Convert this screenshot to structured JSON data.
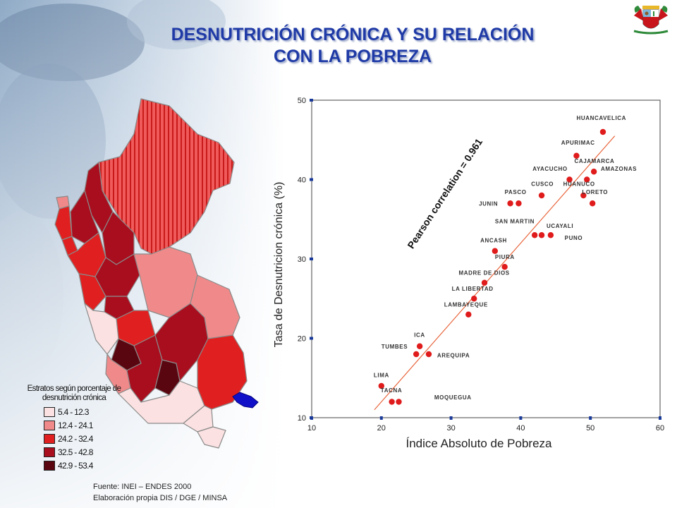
{
  "title": {
    "line1": "DESNUTRICIÓN CRÓNICA Y SU RELACIÓN",
    "line2": "CON LA POBREZA"
  },
  "colors": {
    "title": "#1f3aa6",
    "point": "#e01b1b",
    "fit_line": "#e8643a",
    "axis_tick": "#1a3a9a",
    "map_outline": "#8a8a8a",
    "highlight_region": "#1010c8"
  },
  "emblem": {
    "icon": "peru-coat-of-arms-icon"
  },
  "map": {
    "icon": "peru-regions-choropleth-map",
    "legend": {
      "title_line1": "Estratos según porcentaje de",
      "title_line2": "desnutrición crónica",
      "items": [
        {
          "label": "5.4 - 12.3",
          "color": "#fbe1e1"
        },
        {
          "label": "12.4 - 24.1",
          "color": "#f08a8a"
        },
        {
          "label": "24.2 - 32.4",
          "color": "#e02020"
        },
        {
          "label": "32.5 - 42.8",
          "color": "#a80e1e"
        },
        {
          "label": "42.9 - 53.4",
          "color": "#5a0610"
        }
      ]
    }
  },
  "source": {
    "line1": "Fuente: INEI – ENDES 2000",
    "line2": "Elaboración propia DIS / DGE / MINSA"
  },
  "chart_data": {
    "type": "scatter",
    "xlabel": "Índice Absoluto de Pobreza",
    "ylabel": "Tasa de Desnutricion crónica (%)",
    "xlim": [
      10,
      60
    ],
    "ylim": [
      10,
      50
    ],
    "xticks": [
      "10",
      "20",
      "30",
      "40",
      "50",
      "60"
    ],
    "yticks": [
      "10",
      "20",
      "30",
      "40",
      "50"
    ],
    "annotation": "Pearson correlation = 0.961",
    "fit_line": {
      "from": [
        19,
        11
      ],
      "to": [
        53.5,
        45.5
      ]
    },
    "points": [
      {
        "x": 51.8,
        "y": 46.0
      },
      {
        "x": 48.0,
        "y": 43.0
      },
      {
        "x": 47.0,
        "y": 40.0
      },
      {
        "x": 49.5,
        "y": 40.0
      },
      {
        "x": 50.5,
        "y": 41.0
      },
      {
        "x": 43.0,
        "y": 38.0
      },
      {
        "x": 49.0,
        "y": 38.0
      },
      {
        "x": 38.5,
        "y": 37.0
      },
      {
        "x": 39.7,
        "y": 37.0
      },
      {
        "x": 50.3,
        "y": 37.0
      },
      {
        "x": 42.0,
        "y": 33.0
      },
      {
        "x": 43.0,
        "y": 33.0
      },
      {
        "x": 44.3,
        "y": 33.0
      },
      {
        "x": 36.3,
        "y": 31.0
      },
      {
        "x": 37.7,
        "y": 29.0
      },
      {
        "x": 34.8,
        "y": 27.0
      },
      {
        "x": 33.3,
        "y": 25.0
      },
      {
        "x": 32.5,
        "y": 23.0
      },
      {
        "x": 25.5,
        "y": 19.0
      },
      {
        "x": 25.0,
        "y": 18.0
      },
      {
        "x": 26.8,
        "y": 18.0
      },
      {
        "x": 20.0,
        "y": 14.0
      },
      {
        "x": 21.5,
        "y": 12.0
      },
      {
        "x": 22.5,
        "y": 12.0
      }
    ],
    "labels": [
      {
        "text": "HUANCAVELICA",
        "x": 48.0,
        "y": 47.5
      },
      {
        "text": "APURIMAC",
        "x": 45.8,
        "y": 44.4
      },
      {
        "text": "CAJAMARCA",
        "x": 47.7,
        "y": 42.1
      },
      {
        "text": "AYACUCHO",
        "x": 41.7,
        "y": 41.1
      },
      {
        "text": "AMAZONAS",
        "x": 51.5,
        "y": 41.1
      },
      {
        "text": "CUSCO",
        "x": 41.5,
        "y": 39.2
      },
      {
        "text": "HUANUCO",
        "x": 46.1,
        "y": 39.2
      },
      {
        "text": "PASCO",
        "x": 37.7,
        "y": 38.2
      },
      {
        "text": "LORETO",
        "x": 48.8,
        "y": 38.2
      },
      {
        "text": "JUNIN",
        "x": 34.0,
        "y": 36.7
      },
      {
        "text": "SAN MARTIN",
        "x": 36.3,
        "y": 34.5
      },
      {
        "text": "UCAYALI",
        "x": 43.7,
        "y": 33.9
      },
      {
        "text": "PUNO",
        "x": 46.3,
        "y": 32.4
      },
      {
        "text": "ANCASH",
        "x": 34.2,
        "y": 32.1
      },
      {
        "text": "PIURA",
        "x": 36.3,
        "y": 30.0
      },
      {
        "text": "MADRE DE DIOS",
        "x": 31.1,
        "y": 28.0
      },
      {
        "text": "LA LIBERTAD",
        "x": 30.1,
        "y": 26.0
      },
      {
        "text": "LAMBAYEQUE",
        "x": 29.0,
        "y": 24.0
      },
      {
        "text": "ICA",
        "x": 24.7,
        "y": 20.2
      },
      {
        "text": "TUMBES",
        "x": 20.0,
        "y": 18.7
      },
      {
        "text": "AREQUIPA",
        "x": 28.0,
        "y": 17.6
      },
      {
        "text": "LIMA",
        "x": 18.9,
        "y": 15.1
      },
      {
        "text": "TACNA",
        "x": 19.9,
        "y": 13.2
      },
      {
        "text": "MOQUEGUA",
        "x": 27.6,
        "y": 12.3
      }
    ]
  }
}
